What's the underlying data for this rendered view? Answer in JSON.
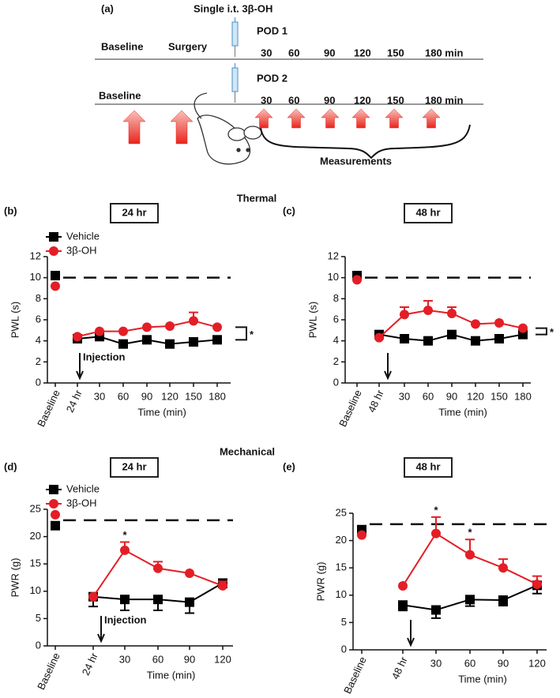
{
  "schematic": {
    "panel": "(a)",
    "title": "Single i.t. 3β-OH",
    "row1": {
      "labels": [
        "Baseline",
        "Surgery"
      ],
      "day": "POD 1",
      "times": [
        "30",
        "60",
        "90",
        "120",
        "150",
        "180 min"
      ]
    },
    "row2": {
      "labels": [
        "Baseline"
      ],
      "day": "POD 2",
      "times": [
        "30",
        "60",
        "90",
        "120",
        "150",
        "180 min"
      ]
    },
    "measurements": "Measurements"
  },
  "headings": {
    "thermal": "Thermal",
    "mechanical": "Mechanical"
  },
  "chart_data": [
    {
      "type": "line",
      "panel": "(b)",
      "subtitle": "24 hr",
      "ylabel": "PWL (s)",
      "xlabel": "Time (min)",
      "categories": [
        "Baseline",
        "24 hr",
        "30",
        "60",
        "90",
        "120",
        "150",
        "180"
      ],
      "series": [
        {
          "name": "Vehicle",
          "color": "#000000",
          "marker": "square",
          "values": [
            10.2,
            4.2,
            4.4,
            3.7,
            4.1,
            3.7,
            3.9,
            4.1
          ],
          "errors": [
            null,
            null,
            null,
            null,
            null,
            null,
            null,
            null
          ]
        },
        {
          "name": "3β-OH",
          "color": "#e41e26",
          "marker": "circle",
          "values": [
            9.2,
            4.4,
            4.9,
            4.9,
            5.3,
            5.4,
            5.9,
            5.3
          ],
          "errors": [
            null,
            null,
            null,
            null,
            null,
            null,
            0.8,
            null
          ]
        }
      ],
      "ylim": [
        0,
        12
      ],
      "yticks": [
        0,
        2,
        4,
        6,
        8,
        10,
        12
      ],
      "reference_line": 10,
      "legend": "upper left",
      "injection_label": "Injection",
      "significance": "*",
      "annotations": []
    },
    {
      "type": "line",
      "panel": "(c)",
      "subtitle": "48 hr",
      "ylabel": "PWL (s)",
      "xlabel": "Time (min)",
      "categories": [
        "Baseline",
        "48 hr",
        "30",
        "60",
        "90",
        "120",
        "150",
        "180"
      ],
      "series": [
        {
          "name": "Vehicle",
          "color": "#000000",
          "marker": "square",
          "values": [
            10.2,
            4.6,
            4.2,
            4.0,
            4.6,
            4.0,
            4.2,
            4.6
          ],
          "errors": [
            null,
            null,
            null,
            null,
            null,
            null,
            null,
            null
          ]
        },
        {
          "name": "3β-OH",
          "color": "#e41e26",
          "marker": "circle",
          "values": [
            9.8,
            4.3,
            6.5,
            6.9,
            6.6,
            5.6,
            5.7,
            5.2
          ],
          "errors": [
            null,
            null,
            0.7,
            0.9,
            0.6,
            null,
            null,
            null
          ]
        }
      ],
      "ylim": [
        0,
        12
      ],
      "yticks": [
        0,
        2,
        4,
        6,
        8,
        10,
        12
      ],
      "reference_line": 10,
      "significance": "*",
      "annotations": []
    },
    {
      "type": "line",
      "panel": "(d)",
      "subtitle": "24 hr",
      "ylabel": "PWR (g)",
      "xlabel": "Time (min)",
      "categories": [
        "Baseline",
        "24 hr",
        "30",
        "60",
        "90",
        "120"
      ],
      "series": [
        {
          "name": "Vehicle",
          "color": "#000000",
          "marker": "square",
          "values": [
            22,
            9,
            8.5,
            8.5,
            8,
            11.5
          ],
          "errors": [
            null,
            1.8,
            2,
            2,
            2,
            0.8
          ]
        },
        {
          "name": "3β-OH",
          "color": "#e41e26",
          "marker": "circle",
          "values": [
            24,
            9,
            17.5,
            14.2,
            13.3,
            11
          ],
          "errors": [
            null,
            null,
            1.5,
            1.2,
            null,
            0.8
          ]
        }
      ],
      "ylim": [
        0,
        25
      ],
      "yticks": [
        0,
        5,
        10,
        15,
        20,
        25
      ],
      "reference_line": 23,
      "legend": "upper left",
      "injection_label": "Injection",
      "annotations": [
        {
          "text": "*",
          "category": "30"
        }
      ]
    },
    {
      "type": "line",
      "panel": "(e)",
      "subtitle": "48 hr",
      "ylabel": "PWR (g)",
      "xlabel": "Time (min)",
      "categories": [
        "Baseline",
        "48 hr",
        "30",
        "60",
        "90",
        "120"
      ],
      "series": [
        {
          "name": "Vehicle",
          "color": "#000000",
          "marker": "square",
          "values": [
            22,
            8.2,
            7.3,
            9.2,
            9.1,
            11.8
          ],
          "errors": [
            null,
            1,
            1.5,
            1.2,
            1,
            1.5
          ]
        },
        {
          "name": "3β-OH",
          "color": "#e41e26",
          "marker": "circle",
          "values": [
            21,
            11.7,
            21.3,
            17.4,
            15,
            12
          ],
          "errors": [
            null,
            null,
            3,
            2.8,
            1.6,
            1.5
          ]
        }
      ],
      "ylim": [
        0,
        25
      ],
      "yticks": [
        0,
        5,
        10,
        15,
        20,
        25
      ],
      "reference_line": 23,
      "annotations": [
        {
          "text": "*",
          "category": "30"
        },
        {
          "text": "*",
          "category": "60"
        }
      ]
    }
  ]
}
